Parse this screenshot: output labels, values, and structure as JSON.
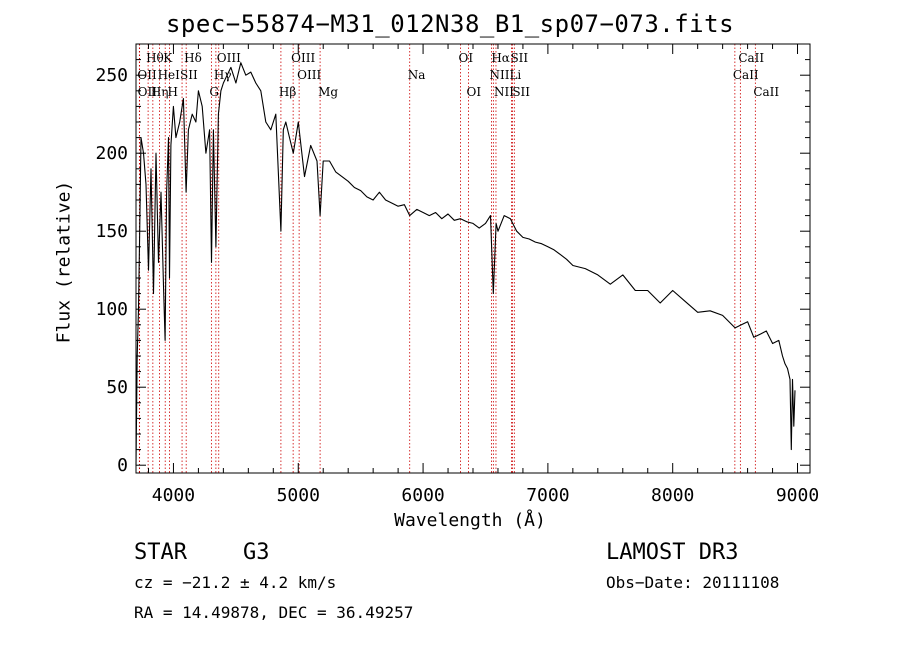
{
  "colors": {
    "line_marker": "#cc0000",
    "spectrum": "#000000",
    "axes": "#000000"
  },
  "chart_data": {
    "type": "line",
    "title": "spec−55874−M31_012N38_B1_sp07−073.fits",
    "xlabel": "Wavelength (Å)",
    "ylabel": "Flux (relative)",
    "xlim": [
      3700,
      9100
    ],
    "ylim": [
      -5,
      270
    ],
    "xticks": [
      4000,
      5000,
      6000,
      7000,
      8000,
      9000
    ],
    "xtick_labels": [
      "4000",
      "5000",
      "6000",
      "7000",
      "8000",
      "9000"
    ],
    "yticks": [
      0,
      50,
      100,
      150,
      200,
      250
    ],
    "ytick_labels": [
      "0",
      "50",
      "100",
      "150",
      "200",
      "250"
    ],
    "series": [
      {
        "name": "spectrum",
        "x": [
          3700,
          3710,
          3720,
          3730,
          3740,
          3760,
          3780,
          3800,
          3820,
          3840,
          3860,
          3880,
          3900,
          3920,
          3933,
          3945,
          3960,
          3968,
          3980,
          4000,
          4020,
          4050,
          4080,
          4101,
          4120,
          4150,
          4180,
          4200,
          4230,
          4260,
          4290,
          4305,
          4320,
          4340,
          4360,
          4380,
          4400,
          4430,
          4460,
          4500,
          4540,
          4580,
          4620,
          4660,
          4700,
          4740,
          4780,
          4820,
          4861,
          4880,
          4900,
          4930,
          4960,
          5000,
          5050,
          5100,
          5150,
          5175,
          5200,
          5250,
          5300,
          5350,
          5400,
          5450,
          5500,
          5550,
          5600,
          5650,
          5700,
          5750,
          5800,
          5850,
          5893,
          5950,
          6000,
          6050,
          6100,
          6150,
          6200,
          6250,
          6300,
          6350,
          6400,
          6450,
          6500,
          6540,
          6563,
          6585,
          6600,
          6650,
          6700,
          6750,
          6800,
          6850,
          6900,
          6950,
          7000,
          7050,
          7100,
          7150,
          7200,
          7300,
          7400,
          7500,
          7600,
          7700,
          7800,
          7900,
          8000,
          8100,
          8200,
          8300,
          8400,
          8500,
          8550,
          8600,
          8650,
          8700,
          8750,
          8800,
          8850,
          8880,
          8900,
          8920,
          8940,
          8950,
          8960,
          8970,
          8980
        ],
        "values": [
          0,
          70,
          100,
          150,
          210,
          200,
          180,
          125,
          190,
          110,
          200,
          130,
          175,
          115,
          80,
          175,
          210,
          120,
          205,
          230,
          210,
          220,
          235,
          175,
          215,
          225,
          220,
          240,
          230,
          200,
          215,
          130,
          215,
          140,
          225,
          240,
          245,
          250,
          255,
          245,
          258,
          250,
          252,
          245,
          240,
          220,
          215,
          225,
          150,
          215,
          220,
          210,
          200,
          220,
          185,
          205,
          195,
          160,
          195,
          195,
          188,
          185,
          182,
          178,
          176,
          172,
          170,
          175,
          170,
          168,
          166,
          167,
          160,
          164,
          162,
          160,
          162,
          158,
          161,
          157,
          158,
          156,
          155,
          152,
          155,
          160,
          110,
          155,
          150,
          160,
          158,
          150,
          146,
          145,
          143,
          142,
          140,
          138,
          135,
          132,
          128,
          126,
          122,
          116,
          122,
          112,
          112,
          104,
          112,
          105,
          98,
          99,
          96,
          88,
          90,
          92,
          82,
          84,
          86,
          78,
          80,
          70,
          65,
          62,
          55,
          10,
          55,
          25,
          48
        ]
      }
    ],
    "line_labels": [
      {
        "name": "Hθ",
        "wavelength": 3797,
        "row": 1
      },
      {
        "name": "OII",
        "wavelength": 3727,
        "row": 2
      },
      {
        "name": "OII",
        "wavelength": 3729,
        "row": 3
      },
      {
        "name": "Hη",
        "wavelength": 3835,
        "row": 3
      },
      {
        "name": "K",
        "wavelength": 3934,
        "row": 1
      },
      {
        "name": "HeI",
        "wavelength": 3889,
        "row": 2
      },
      {
        "name": "H",
        "wavelength": 3968,
        "row": 3
      },
      {
        "name": "SII",
        "wavelength": 4069,
        "row": 2
      },
      {
        "name": "Hδ",
        "wavelength": 4102,
        "row": 1
      },
      {
        "name": "OIII",
        "wavelength": 4363,
        "row": 1
      },
      {
        "name": "Hγ",
        "wavelength": 4340,
        "row": 2
      },
      {
        "name": "G",
        "wavelength": 4304,
        "row": 3
      },
      {
        "name": "OIII",
        "wavelength": 4959,
        "row": 1
      },
      {
        "name": "OIII",
        "wavelength": 5007,
        "row": 2
      },
      {
        "name": "Hβ",
        "wavelength": 4861,
        "row": 3
      },
      {
        "name": "Mg",
        "wavelength": 5175,
        "row": 3
      },
      {
        "name": "Na",
        "wavelength": 5893,
        "row": 2
      },
      {
        "name": "OI",
        "wavelength": 6300,
        "row": 1
      },
      {
        "name": "OI",
        "wavelength": 6364,
        "row": 3
      },
      {
        "name": "Hα",
        "wavelength": 6563,
        "row": 1
      },
      {
        "name": "SII",
        "wavelength": 6716,
        "row": 1
      },
      {
        "name": "NII",
        "wavelength": 6548,
        "row": 2
      },
      {
        "name": "Li",
        "wavelength": 6708,
        "row": 2
      },
      {
        "name": "NII",
        "wavelength": 6584,
        "row": 3
      },
      {
        "name": "SII",
        "wavelength": 6731,
        "row": 3
      },
      {
        "name": "CaII",
        "wavelength": 8542,
        "row": 1
      },
      {
        "name": "CaII",
        "wavelength": 8498,
        "row": 2
      },
      {
        "name": "CaII",
        "wavelength": 8662,
        "row": 3
      }
    ],
    "marker_lines": [
      3727,
      3729,
      3797,
      3835,
      3889,
      3934,
      3968,
      4069,
      4102,
      4304,
      4340,
      4363,
      4861,
      4959,
      5007,
      5175,
      5893,
      6300,
      6364,
      6548,
      6563,
      6584,
      6708,
      6716,
      6731,
      8498,
      8542,
      8662
    ]
  },
  "info": {
    "object_class": "STAR",
    "subclass": "G3",
    "survey": "LAMOST DR3",
    "cz": "cz = −21.2 ± 4.2 km/s",
    "obs_date": "Obs−Date: 20111108",
    "radec": "RA =  14.49878, DEC =  36.49257"
  }
}
